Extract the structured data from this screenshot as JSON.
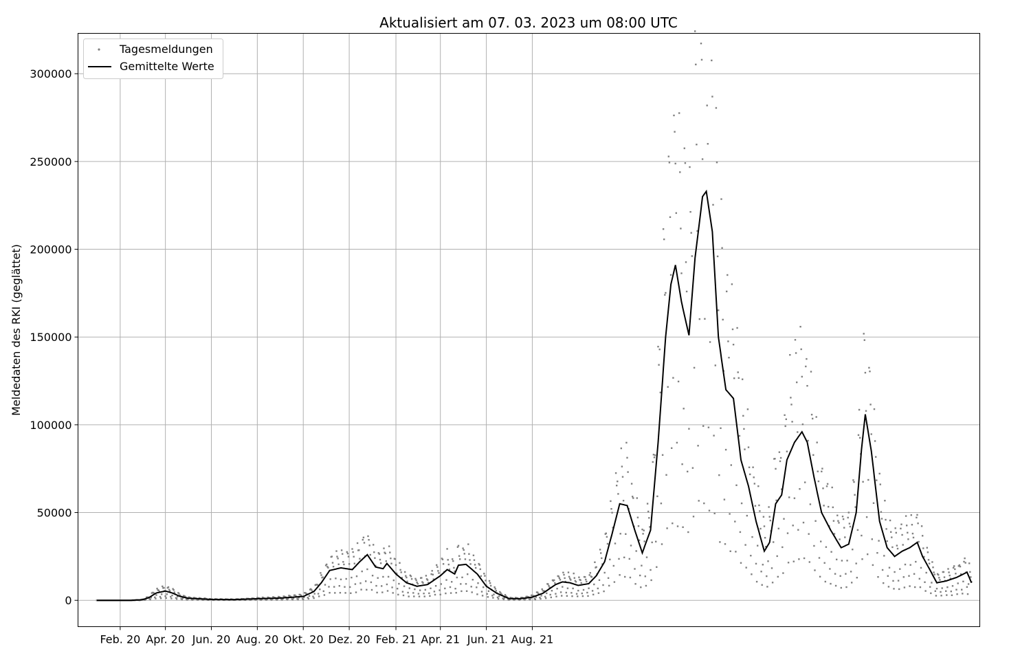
{
  "chart_data": {
    "type": "line",
    "title": "Aktualisiert am 07. 03. 2023 um 08:00 UTC",
    "ylabel": "Meldedaten des RKI (geglättet)",
    "xlabel": "",
    "xlim": [
      "2019-12-07",
      "2023-03-18"
    ],
    "ylim": [
      -15000,
      323000
    ],
    "yticks": [
      0,
      50000,
      100000,
      150000,
      200000,
      250000,
      300000
    ],
    "xticks": [
      {
        "date": "2020-02-01",
        "label": "Feb. 20"
      },
      {
        "date": "2020-04-01",
        "label": "Apr. 20"
      },
      {
        "date": "2020-06-01",
        "label": "Jun. 20"
      },
      {
        "date": "2020-08-01",
        "label": "Aug. 20"
      },
      {
        "date": "2020-10-01",
        "label": "Okt. 20"
      },
      {
        "date": "2020-12-01",
        "label": "Dez. 20"
      },
      {
        "date": "2021-02-01",
        "label": "Feb. 21"
      },
      {
        "date": "2021-04-01",
        "label": "Apr. 21"
      },
      {
        "date": "2021-06-01",
        "label": "Jun. 21"
      },
      {
        "date": "2021-08-01",
        "label": "Aug. 21"
      }
    ],
    "grid": true,
    "legend_position": "top-left",
    "legend": [
      {
        "label": "Tagesmeldungen",
        "style": "dots",
        "color": "#808080"
      },
      {
        "label": "Gemittelte Werte",
        "style": "line",
        "color": "#000000"
      }
    ],
    "series": [
      {
        "name": "Gemittelte Werte",
        "style": "line",
        "color": "#000000",
        "points": [
          [
            "2020-01-01",
            0
          ],
          [
            "2020-02-15",
            0
          ],
          [
            "2020-03-01",
            300
          ],
          [
            "2020-03-10",
            1500
          ],
          [
            "2020-03-20",
            4200
          ],
          [
            "2020-04-01",
            5300
          ],
          [
            "2020-04-10",
            4200
          ],
          [
            "2020-04-20",
            2300
          ],
          [
            "2020-05-01",
            1200
          ],
          [
            "2020-06-01",
            500
          ],
          [
            "2020-07-01",
            400
          ],
          [
            "2020-08-01",
            900
          ],
          [
            "2020-09-01",
            1300
          ],
          [
            "2020-10-01",
            2200
          ],
          [
            "2020-10-15",
            5000
          ],
          [
            "2020-10-25",
            10000
          ],
          [
            "2020-11-05",
            17000
          ],
          [
            "2020-11-20",
            18500
          ],
          [
            "2020-12-05",
            17500
          ],
          [
            "2020-12-15",
            22000
          ],
          [
            "2020-12-25",
            26000
          ],
          [
            "2021-01-05",
            19000
          ],
          [
            "2021-01-15",
            18000
          ],
          [
            "2021-01-20",
            21000
          ],
          [
            "2021-02-01",
            15000
          ],
          [
            "2021-02-15",
            10000
          ],
          [
            "2021-03-01",
            8000
          ],
          [
            "2021-03-15",
            9000
          ],
          [
            "2021-04-01",
            14000
          ],
          [
            "2021-04-10",
            17500
          ],
          [
            "2021-04-20",
            15000
          ],
          [
            "2021-04-25",
            20000
          ],
          [
            "2021-05-05",
            20500
          ],
          [
            "2021-05-20",
            15000
          ],
          [
            "2021-06-01",
            8000
          ],
          [
            "2021-06-15",
            4000
          ],
          [
            "2021-07-01",
            1000
          ],
          [
            "2021-07-15",
            900
          ],
          [
            "2021-08-01",
            1800
          ],
          [
            "2021-08-15",
            4000
          ],
          [
            "2021-09-01",
            9000
          ],
          [
            "2021-09-10",
            10500
          ],
          [
            "2021-09-20",
            10000
          ],
          [
            "2021-10-01",
            8500
          ],
          [
            "2021-10-15",
            9500
          ],
          [
            "2021-10-25",
            14000
          ],
          [
            "2021-11-05",
            22000
          ],
          [
            "2021-11-15",
            38000
          ],
          [
            "2021-11-25",
            55000
          ],
          [
            "2021-12-05",
            54000
          ],
          [
            "2021-12-15",
            40000
          ],
          [
            "2021-12-25",
            27000
          ],
          [
            "2022-01-05",
            40000
          ],
          [
            "2022-01-15",
            90000
          ],
          [
            "2022-01-25",
            150000
          ],
          [
            "2022-02-01",
            180000
          ],
          [
            "2022-02-07",
            191000
          ],
          [
            "2022-02-15",
            170000
          ],
          [
            "2022-02-25",
            151000
          ],
          [
            "2022-03-05",
            195000
          ],
          [
            "2022-03-15",
            230000
          ],
          [
            "2022-03-20",
            233000
          ],
          [
            "2022-03-28",
            210000
          ],
          [
            "2022-04-05",
            150000
          ],
          [
            "2022-04-15",
            120000
          ],
          [
            "2022-04-25",
            115000
          ],
          [
            "2022-05-05",
            80000
          ],
          [
            "2022-05-15",
            65000
          ],
          [
            "2022-05-25",
            45000
          ],
          [
            "2022-06-05",
            28000
          ],
          [
            "2022-06-12",
            33000
          ],
          [
            "2022-06-20",
            55000
          ],
          [
            "2022-06-28",
            60000
          ],
          [
            "2022-07-05",
            80000
          ],
          [
            "2022-07-15",
            90000
          ],
          [
            "2022-07-25",
            96000
          ],
          [
            "2022-08-01",
            90000
          ],
          [
            "2022-08-10",
            70000
          ],
          [
            "2022-08-20",
            50000
          ],
          [
            "2022-09-01",
            40000
          ],
          [
            "2022-09-15",
            30000
          ],
          [
            "2022-09-25",
            32000
          ],
          [
            "2022-10-05",
            50000
          ],
          [
            "2022-10-12",
            86000
          ],
          [
            "2022-10-17",
            106000
          ],
          [
            "2022-10-25",
            85000
          ],
          [
            "2022-11-05",
            45000
          ],
          [
            "2022-11-15",
            30000
          ],
          [
            "2022-11-25",
            25000
          ],
          [
            "2022-12-05",
            28000
          ],
          [
            "2022-12-15",
            30000
          ],
          [
            "2022-12-25",
            33000
          ],
          [
            "2023-01-01",
            25000
          ],
          [
            "2023-01-10",
            18000
          ],
          [
            "2023-01-20",
            10000
          ],
          [
            "2023-02-01",
            11000
          ],
          [
            "2023-02-15",
            13000
          ],
          [
            "2023-03-01",
            16000
          ],
          [
            "2023-03-07",
            10000
          ]
        ]
      },
      {
        "name": "Tagesmeldungen",
        "style": "dots",
        "color": "#808080",
        "note_for_renderer": "daily values generated from the averaged line with weekday factors",
        "weekday_factors": [
          0.25,
          0.7,
          1.55,
          1.45,
          1.3,
          1.1,
          0.45
        ]
      }
    ]
  }
}
